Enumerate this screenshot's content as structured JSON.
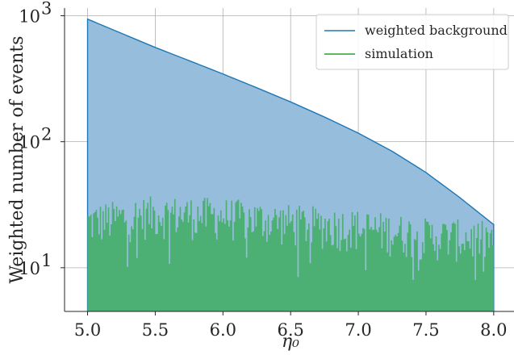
{
  "chart_data": {
    "type": "area",
    "xlabel": "η₀",
    "ylabel": "Weighted number of events",
    "xlim": [
      4.83,
      8.15
    ],
    "ylim": [
      4.5,
      1150
    ],
    "yscale": "log",
    "xticks": [
      "5.0",
      "5.5",
      "6.0",
      "6.5",
      "7.0",
      "7.5",
      "8.0"
    ],
    "yticks": [
      {
        "value": 10,
        "base": "10",
        "exp": "1"
      },
      {
        "value": 100,
        "base": "10",
        "exp": "2"
      },
      {
        "value": 1000,
        "base": "10",
        "exp": "3"
      }
    ],
    "grid": true,
    "legend_position": "top-right",
    "series": [
      {
        "name": "weighted background",
        "color": "#1f77b4",
        "fill": "#96bedc",
        "x": [
          5.0,
          5.25,
          5.5,
          5.75,
          6.0,
          6.25,
          6.5,
          6.75,
          7.0,
          7.25,
          7.5,
          7.75,
          8.0
        ],
        "y": [
          940,
          725,
          560,
          440,
          345,
          268,
          207,
          157,
          117,
          84,
          57,
          36,
          22
        ]
      },
      {
        "name": "simulation",
        "color": "#2ca02c",
        "fill": "#4caf73",
        "x_range": [
          5.0,
          8.0
        ],
        "bins": 300,
        "y_mean": [
          [
            5.0,
            23
          ],
          [
            5.5,
            27
          ],
          [
            6.0,
            26
          ],
          [
            6.5,
            23
          ],
          [
            7.0,
            21
          ],
          [
            7.5,
            18
          ],
          [
            8.0,
            17
          ]
        ],
        "y_min": 8,
        "y_max": 40
      }
    ]
  }
}
